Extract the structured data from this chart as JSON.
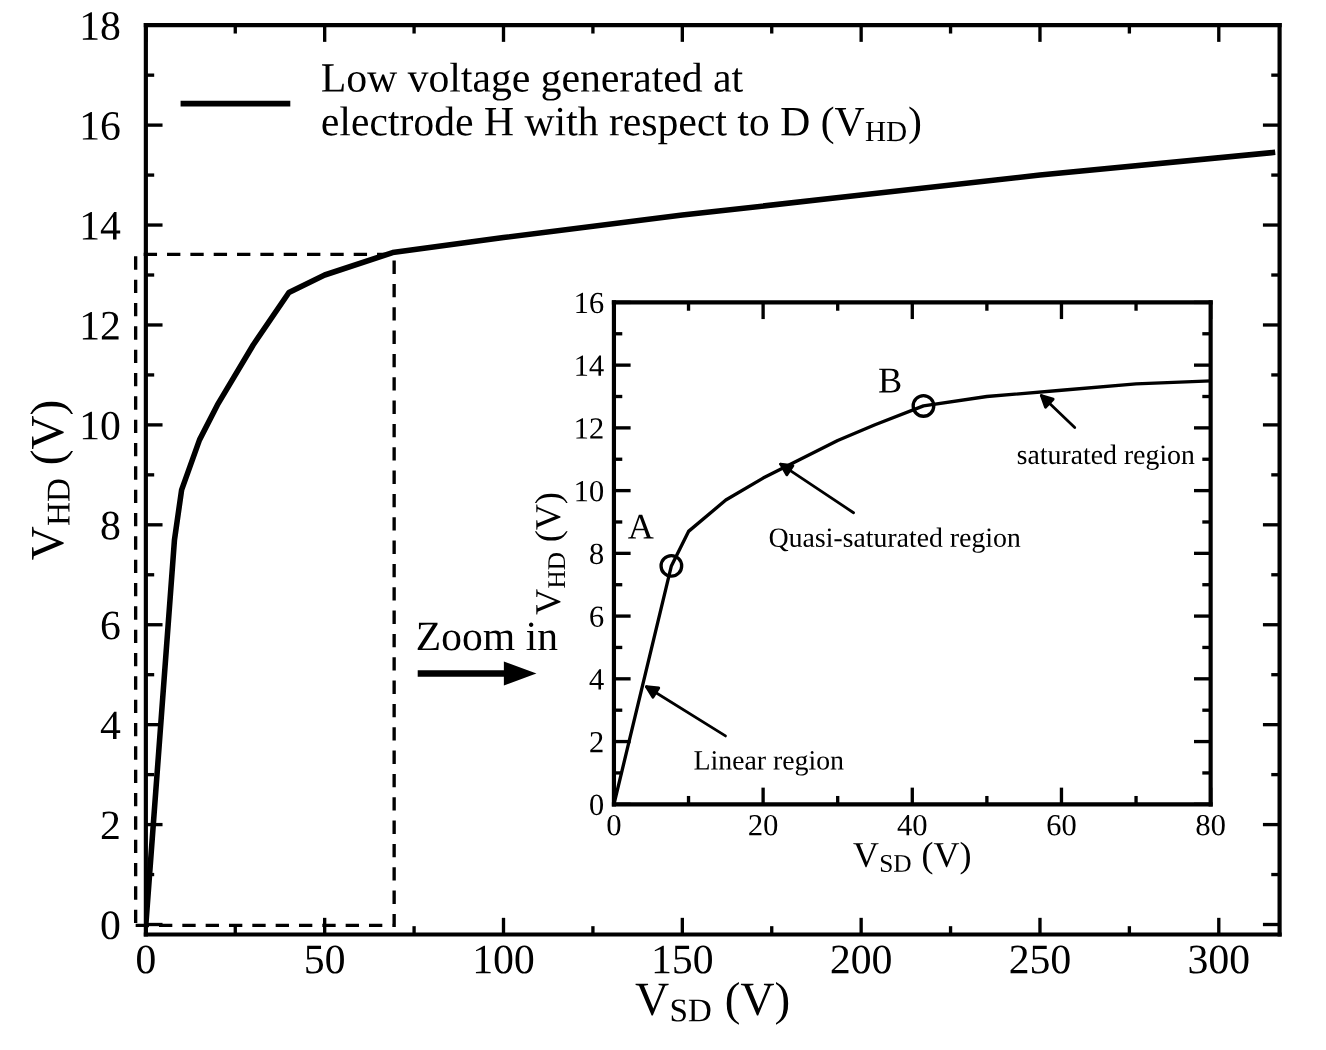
{
  "chart_data": [
    {
      "type": "line",
      "xlabel": "V$_{SD}$ (V)",
      "ylabel": "V$_{HD}$ (V)",
      "xlim": [
        0,
        317
      ],
      "ylim": [
        -0.2,
        18
      ],
      "xticks": [
        0,
        50,
        100,
        150,
        200,
        250,
        300
      ],
      "yticks": [
        0,
        2,
        4,
        6,
        8,
        10,
        12,
        14,
        16,
        18
      ],
      "legend": "top left",
      "annotations": [
        "Zoom in"
      ],
      "series": [
        {
          "name": "Low voltage generated at\nelectrode H with respect to D (V$_{HD}$)",
          "color": "#000000",
          "x": [
            0,
            8,
            10,
            15,
            20,
            30,
            40,
            50,
            69,
            100,
            150,
            200,
            250,
            315
          ],
          "values": [
            0,
            7.7,
            8.7,
            9.7,
            10.4,
            11.6,
            12.65,
            13.0,
            13.45,
            13.75,
            14.2,
            14.6,
            15.0,
            15.45
          ]
        }
      ]
    },
    {
      "type": "line",
      "xlabel": "V$_{SD}$ (V)",
      "ylabel": "V$_{HD}$ (V)",
      "xlim": [
        0,
        80
      ],
      "ylim": [
        0,
        16
      ],
      "xticks": [
        0,
        20,
        40,
        60,
        80
      ],
      "yticks": [
        0,
        2,
        4,
        6,
        8,
        10,
        12,
        14,
        16
      ],
      "annotations": [
        {
          "text": "Linear region",
          "x": 4,
          "y": 3.8
        },
        {
          "text": "Quasi-saturated region",
          "x": 22,
          "y": 10.9
        },
        {
          "text": "saturated region",
          "x": 57,
          "y": 13.1
        },
        {
          "text": "A",
          "x": 7.7,
          "y": 7.6
        },
        {
          "text": "B",
          "x": 41.5,
          "y": 12.7
        }
      ],
      "series": [
        {
          "color": "#000000",
          "x": [
            0,
            7.7,
            10,
            15,
            20,
            25,
            30,
            35,
            41.5,
            50,
            60,
            70,
            80
          ],
          "values": [
            0,
            7.6,
            8.7,
            9.7,
            10.4,
            11.0,
            11.6,
            12.1,
            12.7,
            13.0,
            13.2,
            13.4,
            13.5
          ]
        },
        {
          "type": "scatter",
          "marker": "circle",
          "color": "#000000",
          "x": [
            7.7,
            41.5
          ],
          "values": [
            7.6,
            12.7
          ]
        }
      ]
    }
  ]
}
